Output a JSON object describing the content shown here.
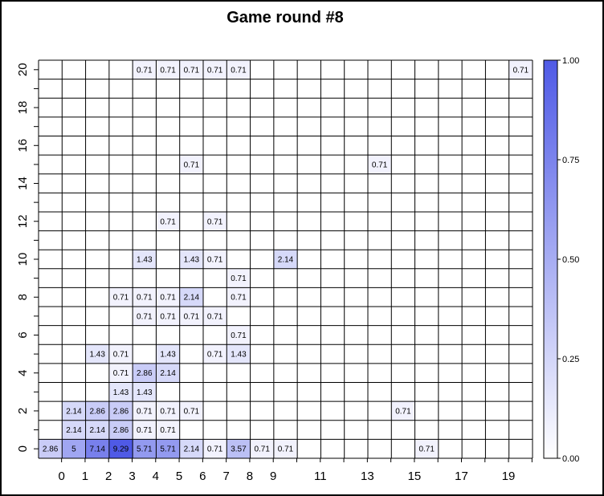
{
  "chart_data": {
    "type": "heatmap",
    "title": "Game round #8",
    "xlabel": "",
    "ylabel": "",
    "x_range": [
      0,
      20
    ],
    "y_range": [
      0,
      20
    ],
    "x_tick_labels": [
      "0",
      "1",
      "2",
      "3",
      "4",
      "5",
      "6",
      "7",
      "8",
      "9",
      "11",
      "13",
      "15",
      "17",
      "19"
    ],
    "x_tick_values": [
      0,
      1,
      2,
      3,
      4,
      5,
      6,
      7,
      8,
      9,
      11,
      13,
      15,
      17,
      19
    ],
    "y_tick_labels": [
      "0",
      "2",
      "4",
      "6",
      "8",
      "10",
      "12",
      "14",
      "16",
      "18",
      "20"
    ],
    "y_tick_values": [
      0,
      2,
      4,
      6,
      8,
      10,
      12,
      14,
      16,
      18,
      20
    ],
    "color_low": "#ffffff",
    "color_high": "#4f5ae6",
    "colorbar": {
      "range": [
        0,
        1
      ],
      "tick_labels": [
        "0.00",
        "0.25",
        "0.50",
        "0.75",
        "1.00"
      ],
      "tick_values": [
        0,
        0.25,
        0.5,
        0.75,
        1.0
      ]
    },
    "grid": true,
    "cells": [
      {
        "x": 0,
        "y": 0,
        "label": "2.86",
        "value": 2.86
      },
      {
        "x": 1,
        "y": 0,
        "label": "5",
        "value": 5
      },
      {
        "x": 2,
        "y": 0,
        "label": "7.14",
        "value": 7.14
      },
      {
        "x": 3,
        "y": 0,
        "label": "9.29",
        "value": 9.29
      },
      {
        "x": 4,
        "y": 0,
        "label": "5.71",
        "value": 5.71
      },
      {
        "x": 5,
        "y": 0,
        "label": "5.71",
        "value": 5.71
      },
      {
        "x": 6,
        "y": 0,
        "label": "2.14",
        "value": 2.14
      },
      {
        "x": 7,
        "y": 0,
        "label": "0.71",
        "value": 0.71
      },
      {
        "x": 8,
        "y": 0,
        "label": "3.57",
        "value": 3.57
      },
      {
        "x": 9,
        "y": 0,
        "label": "0.71",
        "value": 0.71
      },
      {
        "x": 10,
        "y": 0,
        "label": "0.71",
        "value": 0.71
      },
      {
        "x": 16,
        "y": 0,
        "label": "0.71",
        "value": 0.71
      },
      {
        "x": 1,
        "y": 1,
        "label": "2.14",
        "value": 2.14
      },
      {
        "x": 2,
        "y": 1,
        "label": "2.14",
        "value": 2.14
      },
      {
        "x": 3,
        "y": 1,
        "label": "2.86",
        "value": 2.86
      },
      {
        "x": 4,
        "y": 1,
        "label": "0.71",
        "value": 0.71
      },
      {
        "x": 5,
        "y": 1,
        "label": "0.71",
        "value": 0.71
      },
      {
        "x": 1,
        "y": 2,
        "label": "2.14",
        "value": 2.14
      },
      {
        "x": 2,
        "y": 2,
        "label": "2.86",
        "value": 2.86
      },
      {
        "x": 3,
        "y": 2,
        "label": "2.86",
        "value": 2.86
      },
      {
        "x": 4,
        "y": 2,
        "label": "0.71",
        "value": 0.71
      },
      {
        "x": 5,
        "y": 2,
        "label": "0.71",
        "value": 0.71
      },
      {
        "x": 6,
        "y": 2,
        "label": "0.71",
        "value": 0.71
      },
      {
        "x": 15,
        "y": 2,
        "label": "0.71",
        "value": 0.71
      },
      {
        "x": 3,
        "y": 3,
        "label": "1.43",
        "value": 1.43
      },
      {
        "x": 4,
        "y": 3,
        "label": "1.43",
        "value": 1.43
      },
      {
        "x": 3,
        "y": 4,
        "label": "0.71",
        "value": 0.71
      },
      {
        "x": 4,
        "y": 4,
        "label": "2.86",
        "value": 2.86
      },
      {
        "x": 5,
        "y": 4,
        "label": "2.14",
        "value": 2.14
      },
      {
        "x": 2,
        "y": 5,
        "label": "1.43",
        "value": 1.43
      },
      {
        "x": 3,
        "y": 5,
        "label": "0.71",
        "value": 0.71
      },
      {
        "x": 5,
        "y": 5,
        "label": "1.43",
        "value": 1.43
      },
      {
        "x": 7,
        "y": 5,
        "label": "0.71",
        "value": 0.71
      },
      {
        "x": 8,
        "y": 5,
        "label": "1.43",
        "value": 1.43
      },
      {
        "x": 8,
        "y": 6,
        "label": "0.71",
        "value": 0.71
      },
      {
        "x": 4,
        "y": 7,
        "label": "0.71",
        "value": 0.71
      },
      {
        "x": 5,
        "y": 7,
        "label": "0.71",
        "value": 0.71
      },
      {
        "x": 6,
        "y": 7,
        "label": "0.71",
        "value": 0.71
      },
      {
        "x": 7,
        "y": 7,
        "label": "0.71",
        "value": 0.71
      },
      {
        "x": 3,
        "y": 8,
        "label": "0.71",
        "value": 0.71
      },
      {
        "x": 4,
        "y": 8,
        "label": "0.71",
        "value": 0.71
      },
      {
        "x": 5,
        "y": 8,
        "label": "0.71",
        "value": 0.71
      },
      {
        "x": 6,
        "y": 8,
        "label": "2.14",
        "value": 2.14
      },
      {
        "x": 8,
        "y": 8,
        "label": "0.71",
        "value": 0.71
      },
      {
        "x": 8,
        "y": 9,
        "label": "0.71",
        "value": 0.71
      },
      {
        "x": 4,
        "y": 10,
        "label": "1.43",
        "value": 1.43
      },
      {
        "x": 6,
        "y": 10,
        "label": "1.43",
        "value": 1.43
      },
      {
        "x": 7,
        "y": 10,
        "label": "0.71",
        "value": 0.71
      },
      {
        "x": 10,
        "y": 10,
        "label": "2.14",
        "value": 2.14
      },
      {
        "x": 5,
        "y": 12,
        "label": "0.71",
        "value": 0.71
      },
      {
        "x": 7,
        "y": 12,
        "label": "0.71",
        "value": 0.71
      },
      {
        "x": 6,
        "y": 15,
        "label": "0.71",
        "value": 0.71
      },
      {
        "x": 14,
        "y": 15,
        "label": "0.71",
        "value": 0.71
      },
      {
        "x": 4,
        "y": 20,
        "label": "0.71",
        "value": 0.71
      },
      {
        "x": 5,
        "y": 20,
        "label": "0.71",
        "value": 0.71
      },
      {
        "x": 6,
        "y": 20,
        "label": "0.71",
        "value": 0.71
      },
      {
        "x": 7,
        "y": 20,
        "label": "0.71",
        "value": 0.71
      },
      {
        "x": 8,
        "y": 20,
        "label": "0.71",
        "value": 0.71
      },
      {
        "x": 20,
        "y": 20,
        "label": "0.71",
        "value": 0.71
      }
    ]
  }
}
